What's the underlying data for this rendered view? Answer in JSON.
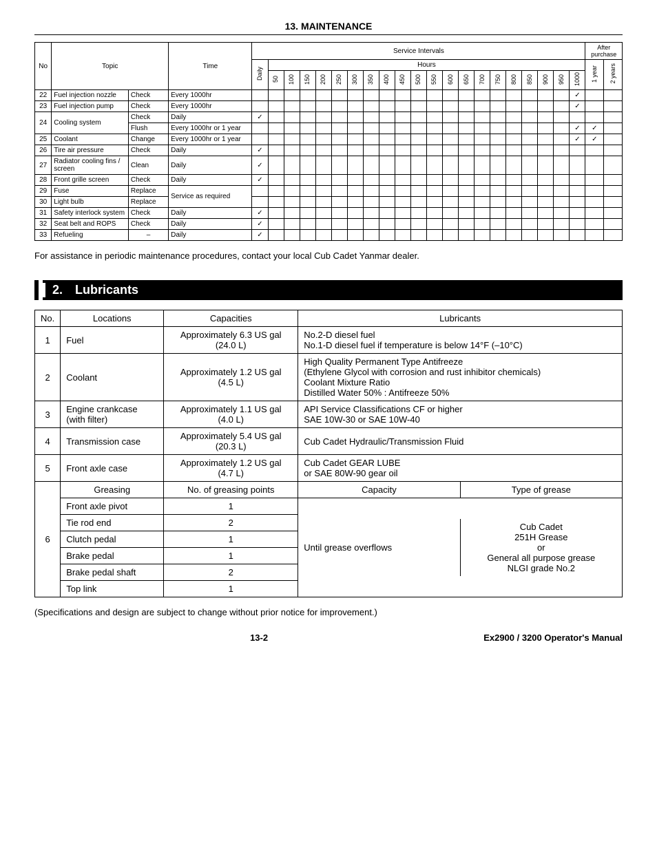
{
  "page_title": "13. MAINTENANCE",
  "maint_headers": {
    "no": "No",
    "topic": "Topic",
    "time": "Time",
    "service_intervals": "Service Intervals",
    "hours": "Hours",
    "after_purchase": "After purchase",
    "daily": "Daily",
    "hour_cols": [
      "50",
      "100",
      "150",
      "200",
      "250",
      "300",
      "350",
      "400",
      "450",
      "500",
      "550",
      "600",
      "650",
      "700",
      "750",
      "800",
      "850",
      "900",
      "950",
      "1000"
    ],
    "year1": "1 year",
    "year2": "2 years"
  },
  "maint_rows": [
    {
      "no": "22",
      "topic": "Fuel injection nozzle",
      "action": "Check",
      "time": "Every 1000hr",
      "checks": {
        "1000": true
      }
    },
    {
      "no": "23",
      "topic": "Fuel injection pump",
      "action": "Check",
      "time": "Every 1000hr",
      "checks": {
        "1000": true
      }
    },
    {
      "no": "24",
      "topic": "Cooling system",
      "rowspan": 2,
      "action": "Check",
      "time": "Daily",
      "checks": {
        "Daily": true
      }
    },
    {
      "action": "Flush",
      "time": "Every 1000hr or 1 year",
      "checks": {
        "1000": true,
        "1 year": true
      }
    },
    {
      "no": "25",
      "topic": "Coolant",
      "action": "Change",
      "time": "Every 1000hr or 1 year",
      "checks": {
        "1000": true,
        "1 year": true
      }
    },
    {
      "no": "26",
      "topic": "Tire air pressure",
      "action": "Check",
      "time": "Daily",
      "checks": {
        "Daily": true
      }
    },
    {
      "no": "27",
      "topic": "Radiator cooling fins / screen",
      "action": "Clean",
      "time": "Daily",
      "checks": {
        "Daily": true
      }
    },
    {
      "no": "28",
      "topic": "Front grille screen",
      "action": "Check",
      "time": "Daily",
      "checks": {
        "Daily": true
      }
    },
    {
      "no": "29",
      "topic": "Fuse",
      "action": "Replace",
      "time": "Service as required",
      "time_rowspan": 2,
      "checks": {}
    },
    {
      "no": "30",
      "topic": "Light bulb",
      "action": "Replace",
      "checks": {}
    },
    {
      "no": "31",
      "topic": "Safety interlock system",
      "action": "Check",
      "time": "Daily",
      "checks": {
        "Daily": true
      }
    },
    {
      "no": "32",
      "topic": "Seat belt and ROPS",
      "action": "Check",
      "time": "Daily",
      "checks": {
        "Daily": true
      }
    },
    {
      "no": "33",
      "topic": "Refueling",
      "action": "–",
      "time": "Daily",
      "checks": {
        "Daily": true
      }
    }
  ],
  "checkmark": "✓",
  "assist_note": "For assistance in periodic maintenance procedures, contact your local Cub Cadet Yanmar dealer.",
  "section2_title": "2. Lubricants",
  "lub_headers": {
    "no": "No.",
    "locations": "Locations",
    "capacities": "Capacities",
    "lubricants": "Lubricants",
    "greasing": "Greasing",
    "points": "No. of greasing points",
    "capacity": "Capacity",
    "type": "Type of grease"
  },
  "lub_rows": [
    {
      "no": "1",
      "loc": "Fuel",
      "cap": "Approximately 6.3 US gal (24.0 L)",
      "lub": "No.2-D diesel fuel\nNo.1-D diesel fuel if temperature is below 14°F (–10°C)"
    },
    {
      "no": "2",
      "loc": "Coolant",
      "cap": "Approximately 1.2 US gal (4.5 L)",
      "lub": "High Quality Permanent Type Antifreeze\n(Ethylene Glycol with corrosion and rust inhibitor chemicals)\nCoolant Mixture Ratio\nDistilled Water 50% : Antifreeze 50%"
    },
    {
      "no": "3",
      "loc": "Engine crankcase (with filter)",
      "cap": "Approximately 1.1 US gal (4.0 L)",
      "lub": "API Service Classifications CF or higher\nSAE 10W-30 or SAE 10W-40"
    },
    {
      "no": "4",
      "loc": "Transmission case",
      "cap": "Approximately 5.4 US gal (20.3 L)",
      "lub": "Cub Cadet Hydraulic/Transmission Fluid"
    },
    {
      "no": "5",
      "loc": "Front axle case",
      "cap": "Approximately 1.2 US gal (4.7 L)",
      "lub": "Cub Cadet GEAR LUBE\nor SAE 80W-90 gear oil"
    }
  ],
  "grease_rows": [
    {
      "loc": "Front axle pivot",
      "pts": "1"
    },
    {
      "loc": "Tie rod end",
      "pts": "2"
    },
    {
      "loc": "Clutch pedal",
      "pts": "1"
    },
    {
      "loc": "Brake pedal",
      "pts": "1"
    },
    {
      "loc": "Brake pedal shaft",
      "pts": "2"
    },
    {
      "loc": "Top link",
      "pts": "1"
    }
  ],
  "grease_no": "6",
  "grease_capacity": "Until grease overflows",
  "grease_type": "Cub Cadet\n251H Grease\nor\nGeneral all purpose grease\nNLGI grade No.2",
  "spec_note": "(Specifications and design are subject to change without prior notice for improvement.)",
  "page_number": "13-2",
  "manual_name": "Ex2900 / 3200 Operator's Manual"
}
